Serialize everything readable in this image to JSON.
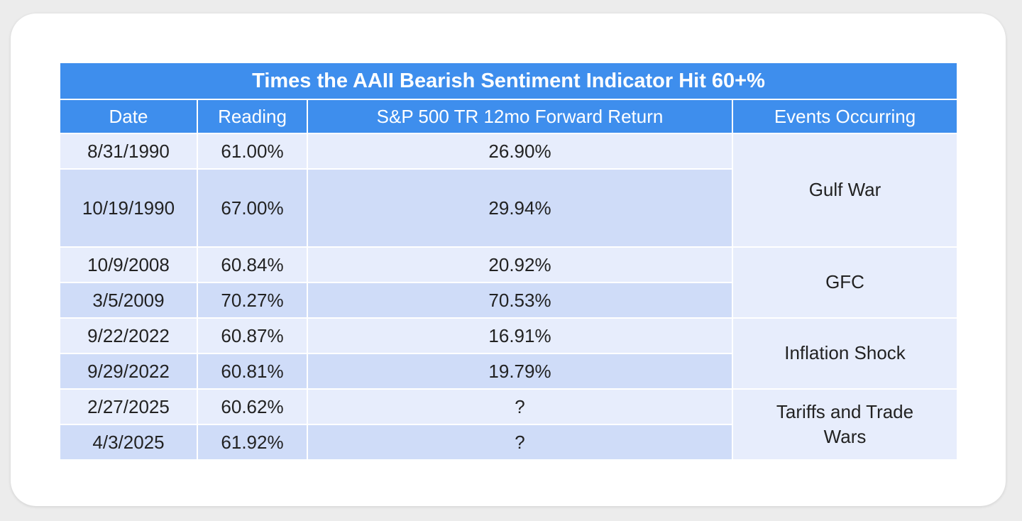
{
  "table": {
    "title": "Times the AAII Bearish Sentiment Indicator Hit 60+%",
    "headers": {
      "date": "Date",
      "reading": "Reading",
      "forward_return": "S&P 500 TR 12mo Forward Return",
      "events": "Events Occurring"
    },
    "rows": [
      {
        "date": "8/31/1990",
        "reading": "61.00%",
        "forward_return": "26.90%"
      },
      {
        "date": "10/19/1990",
        "reading": "67.00%",
        "forward_return": "29.94%"
      },
      {
        "date": "10/9/2008",
        "reading": "60.84%",
        "forward_return": "20.92%"
      },
      {
        "date": "3/5/2009",
        "reading": "70.27%",
        "forward_return": "70.53%"
      },
      {
        "date": "9/22/2022",
        "reading": "60.87%",
        "forward_return": "16.91%"
      },
      {
        "date": "9/29/2022",
        "reading": "60.81%",
        "forward_return": "19.79%"
      },
      {
        "date": "2/27/2025",
        "reading": "60.62%",
        "forward_return": "?"
      },
      {
        "date": "4/3/2025",
        "reading": "61.92%",
        "forward_return": "?"
      }
    ],
    "events": [
      {
        "label": "Gulf War"
      },
      {
        "label": "GFC"
      },
      {
        "label": "Inflation Shock"
      },
      {
        "label": "Tariffs and Trade Wars"
      }
    ]
  },
  "colors": {
    "header_bg": "#3e8eed",
    "row_light": "#e7edfc",
    "row_dark": "#cfdcf8",
    "text": "#222222"
  }
}
